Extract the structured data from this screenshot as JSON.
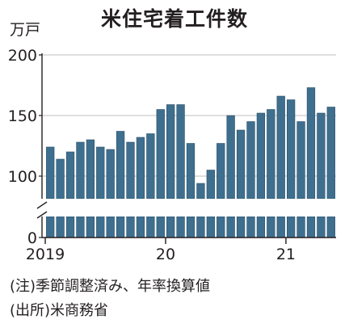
{
  "title": "米住宅着工件数",
  "notes": {
    "adjustment": "(注)季節調整済み、年率換算値",
    "source": "(出所)米商務省"
  },
  "colors": {
    "bar": "#3f6f8f",
    "bar_edge": "#2b4f67",
    "axis": "#231f20",
    "grid": "#bfbfbf"
  },
  "chart_data": {
    "type": "bar",
    "ylabel": "万戸",
    "xlabel": "",
    "axis_break": true,
    "ylim": [
      0,
      200
    ],
    "yticks": [
      0,
      100,
      150,
      200
    ],
    "grid": true,
    "categories": [
      "2019-01",
      "2019-02",
      "2019-03",
      "2019-04",
      "2019-05",
      "2019-06",
      "2019-07",
      "2019-08",
      "2019-09",
      "2019-10",
      "2019-11",
      "2019-12",
      "2020-01",
      "2020-02",
      "2020-03",
      "2020-04",
      "2020-05",
      "2020-06",
      "2020-07",
      "2020-08",
      "2020-09",
      "2020-10",
      "2020-11",
      "2020-12",
      "2021-01",
      "2021-02",
      "2021-03",
      "2021-04",
      "2021-05"
    ],
    "values": [
      124,
      114,
      120,
      128,
      130,
      124,
      122,
      137,
      128,
      132,
      135,
      155,
      159,
      159,
      127,
      94,
      105,
      127,
      150,
      138,
      145,
      152,
      155,
      166,
      163,
      145,
      173,
      152,
      157
    ],
    "year_labels": [
      {
        "label": "2019",
        "category": "2019-01"
      },
      {
        "label": "20",
        "category": "2020-01"
      },
      {
        "label": "21",
        "category": "2021-01"
      }
    ]
  }
}
